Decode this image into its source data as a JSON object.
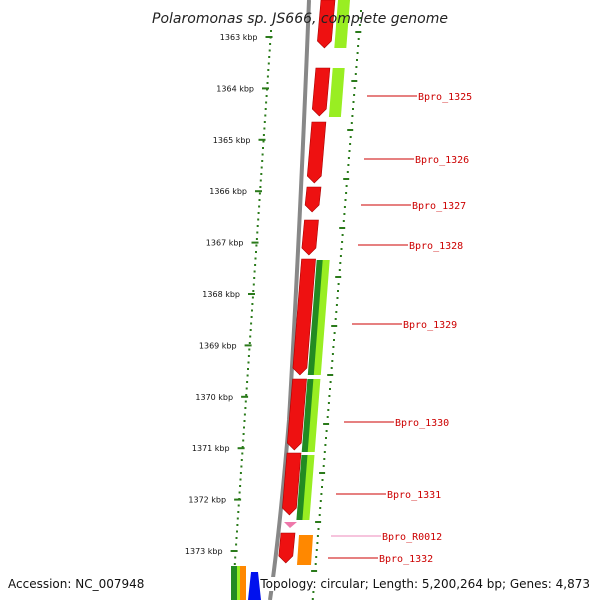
{
  "title": "Polaromonas sp. JS666, complete genome",
  "footer": {
    "accession": "Accession: NC_007948",
    "topology": "Topology: circular; Length: 5,200,264 bp; Genes: 4,873"
  },
  "ticks": [
    "1363 kbp",
    "1364 kbp",
    "1365 kbp",
    "1366 kbp",
    "1367 kbp",
    "1368 kbp",
    "1369 kbp",
    "1370 kbp",
    "1371 kbp",
    "1372 kbp",
    "1373 kbp"
  ],
  "gene_labels": [
    {
      "text": "Bpro_1325",
      "color": "#cc0000"
    },
    {
      "text": "Bpro_1326",
      "color": "#cc0000"
    },
    {
      "text": "Bpro_1327",
      "color": "#cc0000"
    },
    {
      "text": "Bpro_1328",
      "color": "#cc0000"
    },
    {
      "text": "Bpro_1329",
      "color": "#cc0000"
    },
    {
      "text": "Bpro_1330",
      "color": "#cc0000"
    },
    {
      "text": "Bpro_1331",
      "color": "#cc0000"
    },
    {
      "text": "Bpro_R0012",
      "color": "#ee88bb"
    },
    {
      "text": "Bpro_1332",
      "color": "#cc0000"
    }
  ],
  "colors": {
    "gene": "#ee1111",
    "gene_dark": "#aa0000",
    "cds_green": "#228b22",
    "cds_lime": "#99ee22",
    "rna_pink": "#ee77aa",
    "orange": "#ff8800",
    "blue": "#0011ee",
    "backbone": "#888888",
    "tick": "#2a7a1a"
  }
}
